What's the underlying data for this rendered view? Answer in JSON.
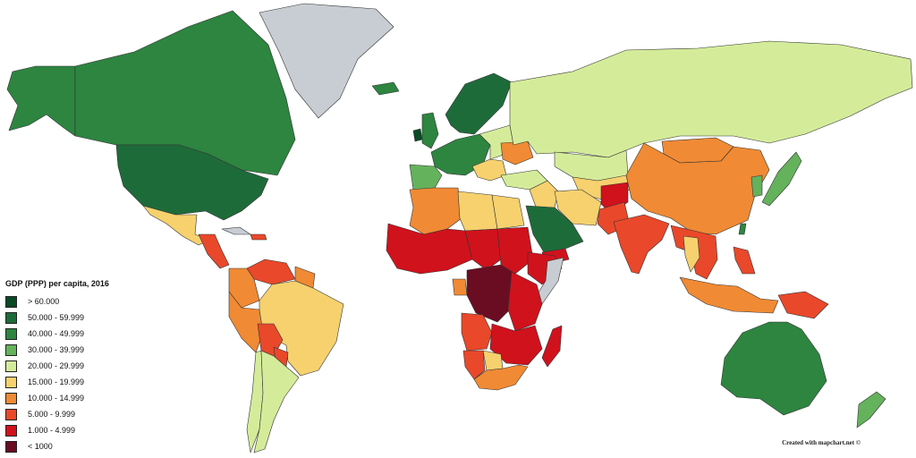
{
  "legend": {
    "title": "GDP (PPP) per capita, 2016",
    "items": [
      {
        "label": "> 60.000",
        "color": "#0b4a26"
      },
      {
        "label": "50.000 - 59.999",
        "color": "#1e6b3a"
      },
      {
        "label": "40.000 - 49.999",
        "color": "#2d8540"
      },
      {
        "label": "30.000 - 39.999",
        "color": "#64b25c"
      },
      {
        "label": "20.000 - 29.999",
        "color": "#d4ec9a"
      },
      {
        "label": "15.000 - 19.999",
        "color": "#f6d16e"
      },
      {
        "label": "10.000 - 14.999",
        "color": "#f08a34"
      },
      {
        "label": "5.000 - 9.999",
        "color": "#e9482a"
      },
      {
        "label": "1.000 - 4.999",
        "color": "#d0121c"
      },
      {
        "label": "< 1000",
        "color": "#6a0d22"
      }
    ]
  },
  "no_data_color": "#c7cdd2",
  "credit": "Created with mapchart.net ©",
  "regions": [
    {
      "name": "alaska",
      "color": "#2d8540"
    },
    {
      "name": "canada",
      "color": "#2d8540"
    },
    {
      "name": "greenland",
      "color": "#c7cdd2"
    },
    {
      "name": "united-states",
      "color": "#1e6b3a"
    },
    {
      "name": "mexico",
      "color": "#f6d16e"
    },
    {
      "name": "central-america",
      "color": "#e9482a"
    },
    {
      "name": "cuba",
      "color": "#c7cdd2"
    },
    {
      "name": "caribbean-hispaniola",
      "color": "#e9482a"
    },
    {
      "name": "colombia",
      "color": "#f08a34"
    },
    {
      "name": "venezuela",
      "color": "#e9482a"
    },
    {
      "name": "guianas",
      "color": "#f08a34"
    },
    {
      "name": "brazil",
      "color": "#f6d16e"
    },
    {
      "name": "peru",
      "color": "#f08a34"
    },
    {
      "name": "bolivia",
      "color": "#e9482a"
    },
    {
      "name": "paraguay",
      "color": "#e9482a"
    },
    {
      "name": "argentina",
      "color": "#d4ec9a"
    },
    {
      "name": "chile",
      "color": "#d4ec9a"
    },
    {
      "name": "iceland",
      "color": "#2d8540"
    },
    {
      "name": "uk",
      "color": "#2d8540"
    },
    {
      "name": "ireland",
      "color": "#0b4a26"
    },
    {
      "name": "scandinavia",
      "color": "#1e6b3a"
    },
    {
      "name": "western-europe",
      "color": "#2d8540"
    },
    {
      "name": "iberia",
      "color": "#64b25c"
    },
    {
      "name": "eastern-europe",
      "color": "#d4ec9a"
    },
    {
      "name": "ukraine",
      "color": "#f08a34"
    },
    {
      "name": "balkans",
      "color": "#f6d16e"
    },
    {
      "name": "turkey",
      "color": "#d4ec9a"
    },
    {
      "name": "russia",
      "color": "#d4ec9a"
    },
    {
      "name": "kazakhstan",
      "color": "#d4ec9a"
    },
    {
      "name": "central-asia",
      "color": "#f6d16e"
    },
    {
      "name": "iran",
      "color": "#f6d16e"
    },
    {
      "name": "afghanistan",
      "color": "#d0121c"
    },
    {
      "name": "arabia",
      "color": "#1e6b3a"
    },
    {
      "name": "yemen",
      "color": "#d0121c"
    },
    {
      "name": "iraq-syria",
      "color": "#f6d16e"
    },
    {
      "name": "pakistan",
      "color": "#e9482a"
    },
    {
      "name": "india",
      "color": "#e9482a"
    },
    {
      "name": "china",
      "color": "#f08a34"
    },
    {
      "name": "mongolia",
      "color": "#f08a34"
    },
    {
      "name": "korea",
      "color": "#64b25c"
    },
    {
      "name": "japan",
      "color": "#64b25c"
    },
    {
      "name": "taiwan",
      "color": "#2d8540"
    },
    {
      "name": "southeast-asia",
      "color": "#e9482a"
    },
    {
      "name": "thailand",
      "color": "#f6d16e"
    },
    {
      "name": "philippines",
      "color": "#e9482a"
    },
    {
      "name": "indonesia",
      "color": "#f08a34"
    },
    {
      "name": "papua-new-guinea",
      "color": "#e9482a"
    },
    {
      "name": "australia",
      "color": "#2d8540"
    },
    {
      "name": "new-zealand",
      "color": "#64b25c"
    },
    {
      "name": "north-africa-maghreb",
      "color": "#f08a34"
    },
    {
      "name": "libya",
      "color": "#f6d16e"
    },
    {
      "name": "egypt",
      "color": "#f6d16e"
    },
    {
      "name": "west-africa",
      "color": "#d0121c"
    },
    {
      "name": "sahel",
      "color": "#d0121c"
    },
    {
      "name": "sudan",
      "color": "#d0121c"
    },
    {
      "name": "horn-of-africa",
      "color": "#d0121c"
    },
    {
      "name": "somalia",
      "color": "#c7cdd2"
    },
    {
      "name": "central-africa",
      "color": "#6a0d22"
    },
    {
      "name": "gabon",
      "color": "#f08a34"
    },
    {
      "name": "east-africa",
      "color": "#d0121c"
    },
    {
      "name": "angola",
      "color": "#e9482a"
    },
    {
      "name": "southern-africa",
      "color": "#d0121c"
    },
    {
      "name": "namibia",
      "color": "#e9482a"
    },
    {
      "name": "botswana",
      "color": "#f6d16e"
    },
    {
      "name": "south-africa",
      "color": "#f08a34"
    },
    {
      "name": "madagascar",
      "color": "#d0121c"
    }
  ]
}
